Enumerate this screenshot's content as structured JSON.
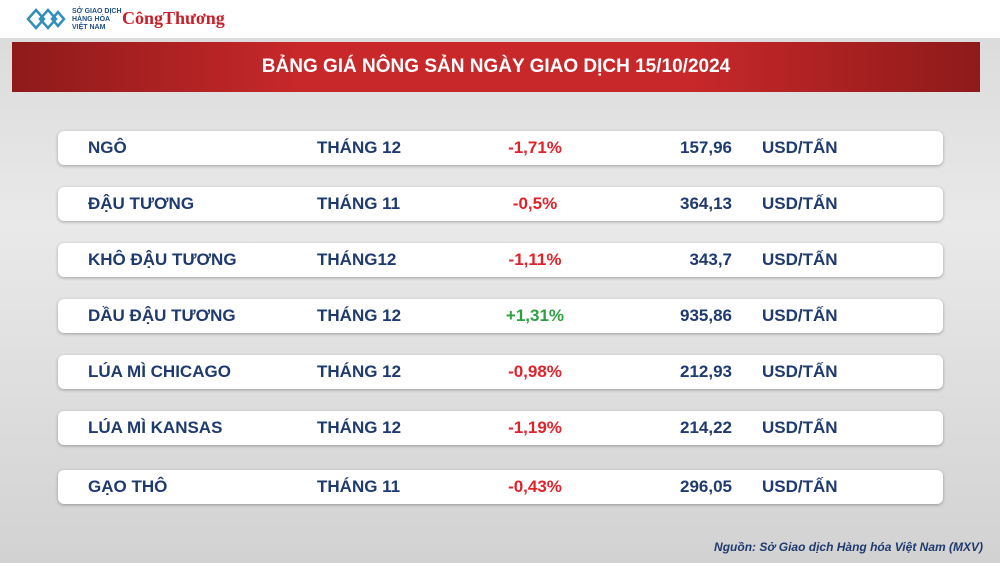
{
  "logo": {
    "mxv": [
      "SỞ GIAO DỊCH",
      "HÀNG HÓA",
      "VIỆT NAM"
    ],
    "congthuong": "CôngThương"
  },
  "header": {
    "title": "BẢNG GIÁ NÔNG SẢN NGÀY GIAO DỊCH 15/10/2024"
  },
  "table": {
    "rows": [
      [
        "NGÔ",
        "THÁNG 12",
        "-1,71%",
        "157,96",
        "USD/TẤN"
      ],
      [
        "ĐẬU TƯƠNG",
        "THÁNG 11",
        "-0,5%",
        "364,13",
        "USD/TẤN"
      ],
      [
        "KHÔ ĐẬU TƯƠNG",
        "THÁNG12",
        "-1,11%",
        "343,7",
        "USD/TẤN"
      ],
      [
        "DẦU ĐẬU TƯƠNG",
        "THÁNG 12",
        "+1,31%",
        "935,86",
        "USD/TẤN"
      ],
      [
        "LÚA MÌ CHICAGO",
        "THÁNG 12",
        "-0,98%",
        "212,93",
        "USD/TẤN"
      ],
      [
        "LÚA MÌ KANSAS",
        "THÁNG 12",
        "-1,19%",
        "214,22",
        "USD/TẤN"
      ],
      [
        "GẠO THÔ",
        "THÁNG 11",
        "-0,43%",
        "296,05",
        "USD/TẤN"
      ]
    ]
  },
  "source": "Nguồn: Sở Giao dịch Hàng hóa Việt Nam (MXV)"
}
